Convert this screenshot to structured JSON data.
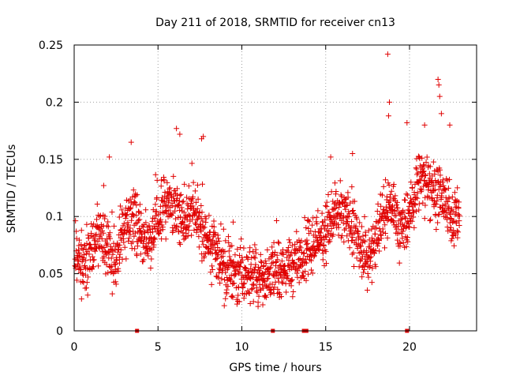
{
  "chart_data": {
    "type": "scatter",
    "title": "Day 211 of 2018, SRMTID for receiver cn13",
    "xlabel": "GPS time / hours",
    "ylabel": "SRMTID / TECUs",
    "xlim": [
      0,
      24
    ],
    "ylim": [
      0,
      0.25
    ],
    "xticks": [
      0,
      5,
      10,
      15,
      20
    ],
    "xtick_labels": [
      "0",
      "5",
      "10",
      "15",
      "20"
    ],
    "yticks": [
      0,
      0.05,
      0.1,
      0.15,
      0.2,
      0.25
    ],
    "ytick_labels": [
      "0",
      "0.05",
      "0.1",
      "0.15",
      "0.2",
      "0.25"
    ],
    "grid": true,
    "marker": "+",
    "series_color": "#e00000",
    "trend": [
      [
        0.0,
        0.068
      ],
      [
        0.5,
        0.058
      ],
      [
        1.0,
        0.072
      ],
      [
        1.5,
        0.085
      ],
      [
        2.0,
        0.075
      ],
      [
        2.5,
        0.065
      ],
      [
        3.0,
        0.09
      ],
      [
        3.5,
        0.1
      ],
      [
        4.0,
        0.085
      ],
      [
        4.5,
        0.08
      ],
      [
        5.0,
        0.1
      ],
      [
        5.5,
        0.115
      ],
      [
        6.0,
        0.11
      ],
      [
        6.5,
        0.1
      ],
      [
        7.0,
        0.11
      ],
      [
        7.5,
        0.095
      ],
      [
        8.0,
        0.075
      ],
      [
        8.5,
        0.065
      ],
      [
        9.0,
        0.058
      ],
      [
        9.5,
        0.053
      ],
      [
        10.0,
        0.05
      ],
      [
        10.5,
        0.048
      ],
      [
        11.0,
        0.047
      ],
      [
        11.5,
        0.048
      ],
      [
        12.0,
        0.052
      ],
      [
        12.5,
        0.055
      ],
      [
        13.0,
        0.058
      ],
      [
        13.5,
        0.063
      ],
      [
        14.0,
        0.07
      ],
      [
        14.5,
        0.08
      ],
      [
        15.0,
        0.09
      ],
      [
        15.5,
        0.1
      ],
      [
        16.0,
        0.1
      ],
      [
        16.5,
        0.095
      ],
      [
        17.0,
        0.075
      ],
      [
        17.5,
        0.065
      ],
      [
        18.0,
        0.08
      ],
      [
        18.5,
        0.105
      ],
      [
        19.0,
        0.11
      ],
      [
        19.5,
        0.085
      ],
      [
        20.0,
        0.1
      ],
      [
        20.5,
        0.13
      ],
      [
        21.0,
        0.135
      ],
      [
        21.5,
        0.12
      ],
      [
        22.0,
        0.115
      ],
      [
        22.5,
        0.1
      ],
      [
        23.0,
        0.1
      ]
    ],
    "spread": 0.025,
    "n_points": 1750,
    "outliers": [
      [
        18.7,
        0.242
      ],
      [
        18.8,
        0.2
      ],
      [
        18.75,
        0.188
      ],
      [
        21.7,
        0.22
      ],
      [
        21.75,
        0.215
      ],
      [
        21.8,
        0.205
      ],
      [
        19.85,
        0.182
      ],
      [
        6.1,
        0.177
      ],
      [
        6.3,
        0.172
      ],
      [
        7.6,
        0.168
      ],
      [
        3.4,
        0.165
      ],
      [
        7.7,
        0.17
      ],
      [
        2.1,
        0.152
      ],
      [
        15.3,
        0.152
      ],
      [
        16.6,
        0.155
      ],
      [
        20.9,
        0.18
      ],
      [
        21.9,
        0.19
      ],
      [
        22.4,
        0.18
      ]
    ],
    "gap_markers_x": [
      3.75,
      11.85,
      13.7,
      13.85,
      19.85
    ],
    "gap_markers_y": 0
  }
}
